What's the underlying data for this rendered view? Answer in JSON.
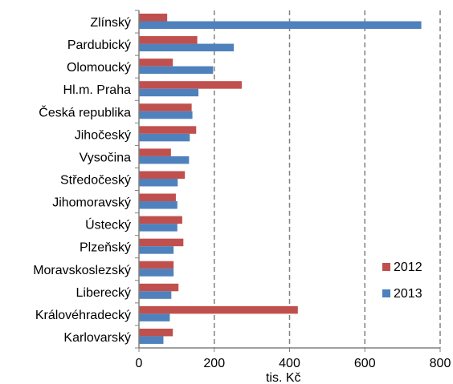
{
  "chart_data": {
    "type": "bar",
    "orientation": "horizontal",
    "categories": [
      "Zlínský",
      "Pardubický",
      "Olomoucký",
      "Hl.m. Praha",
      "Česká republika",
      "Jihočeský",
      "Vysočina",
      "Středočeský",
      "Jihomoravský",
      "Ústecký",
      "Plzeňský",
      "Moravskoslezský",
      "Liberecký",
      "Královéhradecký",
      "Karlovarský"
    ],
    "series": [
      {
        "name": "2012",
        "color": "#C0504D",
        "values": [
          75,
          155,
          90,
          273,
          140,
          152,
          85,
          122,
          98,
          115,
          118,
          92,
          105,
          422,
          90
        ]
      },
      {
        "name": "2013",
        "color": "#4F81BD",
        "values": [
          750,
          252,
          197,
          158,
          142,
          135,
          133,
          103,
          102,
          102,
          92,
          92,
          86,
          82,
          65
        ]
      }
    ],
    "xlabel": "tis. Kč",
    "ylabel": "",
    "xlim": [
      0,
      800
    ],
    "xticks": [
      "0",
      "200",
      "400",
      "600",
      "800"
    ],
    "grid": "vertical dashed",
    "legend": "bottom-right"
  }
}
